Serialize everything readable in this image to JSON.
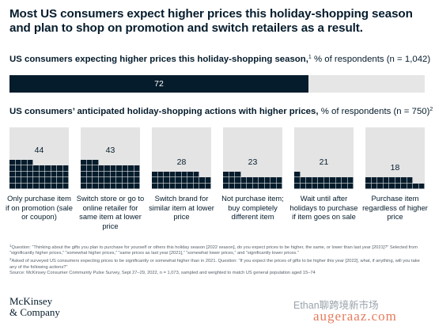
{
  "headline": "Most US consumers expect higher prices this holiday-shopping season and plan to shop on promotion and switch retailers as a result.",
  "section1": {
    "title": "US consumers expecting higher prices this holiday-shopping season,",
    "marker": "1",
    "unit": "% of respondents (n = 1,042)"
  },
  "section2": {
    "title": "US consumers’ anticipated holiday-shopping actions with higher prices,",
    "unit": "% of respondents (n = 750)",
    "marker": "2"
  },
  "chart_data": [
    {
      "type": "bar",
      "categories": [
        "US consumers expecting higher prices"
      ],
      "values": [
        72
      ],
      "data_labels": [
        "72"
      ],
      "xlim": [
        0,
        100
      ]
    },
    {
      "type": "bar",
      "categories": [
        "Only purchase item if on promotion (sale or coupon)",
        "Switch store or go to online retailer for same item at lower price",
        "Switch brand for similar item at lower price",
        "Not purchase item; buy completely different item",
        "Wait until after holidays to purchase if item goes on sale",
        "Purchase item regardless of higher price"
      ],
      "values": [
        44,
        43,
        28,
        23,
        21,
        18
      ],
      "data_labels": [
        "44",
        "43",
        "28",
        "23",
        "21",
        "18"
      ],
      "ylim": [
        0,
        100
      ]
    }
  ],
  "footnotes": {
    "note1_marker": "1",
    "note1": "Question: “Thinking about the gifts you plan to purchase for yourself or others this holiday season [2022 season], do you expect prices to be higher, the same, or lower than last year [2021]?” Selected from “significantly higher prices,” “somewhat higher prices,” “same prices as last year [2021],” “somewhat lower prices,” and “significantly lower prices.”",
    "note2_marker": "2",
    "note2": "Asked of surveyed US consumers expecting prices to be significantly or somewhat higher than in 2021. Question: “If you expect the prices of gifts to be higher this year [2022], what, if anything, will you take any of the following actions?”",
    "source": "Source: McKinsey Consumer Community Pulse Survey, Sept 27–29, 2022, n = 1,073, sampled and weighted to match US general population aged 15–74"
  },
  "logo": {
    "line1": "McKinsey",
    "line2": "& Company"
  },
  "watermark": {
    "line1": "Ethan聊跨境新市场",
    "line2": "augeraaz.com"
  },
  "colors": {
    "navy": "#051c2c",
    "track": "#e6e6e6",
    "panel": "#e4e4e4"
  }
}
